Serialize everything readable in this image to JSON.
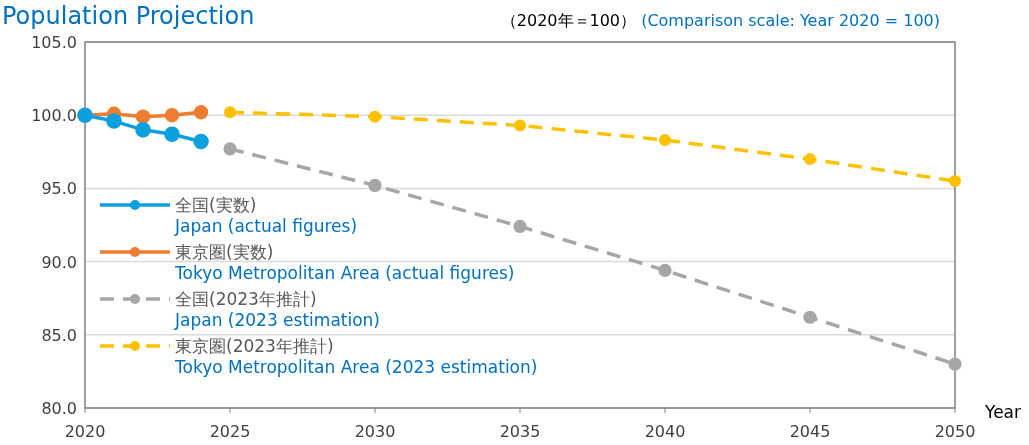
{
  "chart_data": {
    "type": "line",
    "title": "Population Projection",
    "xlabel": "Year",
    "annotations": [
      "（2020年＝100）",
      "(Comparison scale: Year 2020 = 100)"
    ],
    "xlim": [
      2020,
      2050
    ],
    "xticks": [
      2020,
      2025,
      2030,
      2035,
      2040,
      2045,
      2050
    ],
    "ylim": [
      80,
      105
    ],
    "yticks": [
      {
        "value": 80,
        "label": "80.0"
      },
      {
        "value": 85,
        "label": "85.0"
      },
      {
        "value": 90,
        "label": "90.0"
      },
      {
        "value": 95,
        "label": "95.0"
      },
      {
        "value": 100,
        "label": "100.0"
      },
      {
        "value": 105,
        "label": "105.0"
      }
    ],
    "grid": "y",
    "legend": "left",
    "marker": "circle",
    "series": [
      {
        "name": "全国(実数)\nJapan (actual figures)",
        "color": "#0ea0dc",
        "line_style": "solid",
        "x": [
          2020,
          2021,
          2022,
          2023,
          2024
        ],
        "values": [
          100.0,
          99.6,
          99.0,
          98.7,
          98.2
        ]
      },
      {
        "name": "東京圏(実数)\nTokyo Metropolitan Area (actual figures)",
        "color": "#ed7d31",
        "line_style": "solid",
        "x": [
          2020,
          2021,
          2022,
          2023,
          2024
        ],
        "values": [
          100.0,
          100.1,
          99.9,
          100.0,
          100.2
        ]
      },
      {
        "name": "全国(2023年推計)\nJapan (2023 estimation)",
        "color": "#a6a6a6",
        "line_style": "dashed",
        "x": [
          2025,
          2030,
          2035,
          2040,
          2045,
          2050
        ],
        "values": [
          97.7,
          95.2,
          92.4,
          89.4,
          86.2,
          83.0
        ]
      },
      {
        "name": "東京圏(2023年推計)\nTokyo Metropolitan Area (2023 estimation)",
        "color": "#ffc000",
        "line_style": "dashed",
        "x": [
          2025,
          2030,
          2035,
          2040,
          2045,
          2050
        ],
        "values": [
          100.2,
          99.9,
          99.3,
          98.3,
          97.0,
          95.5
        ]
      }
    ]
  }
}
